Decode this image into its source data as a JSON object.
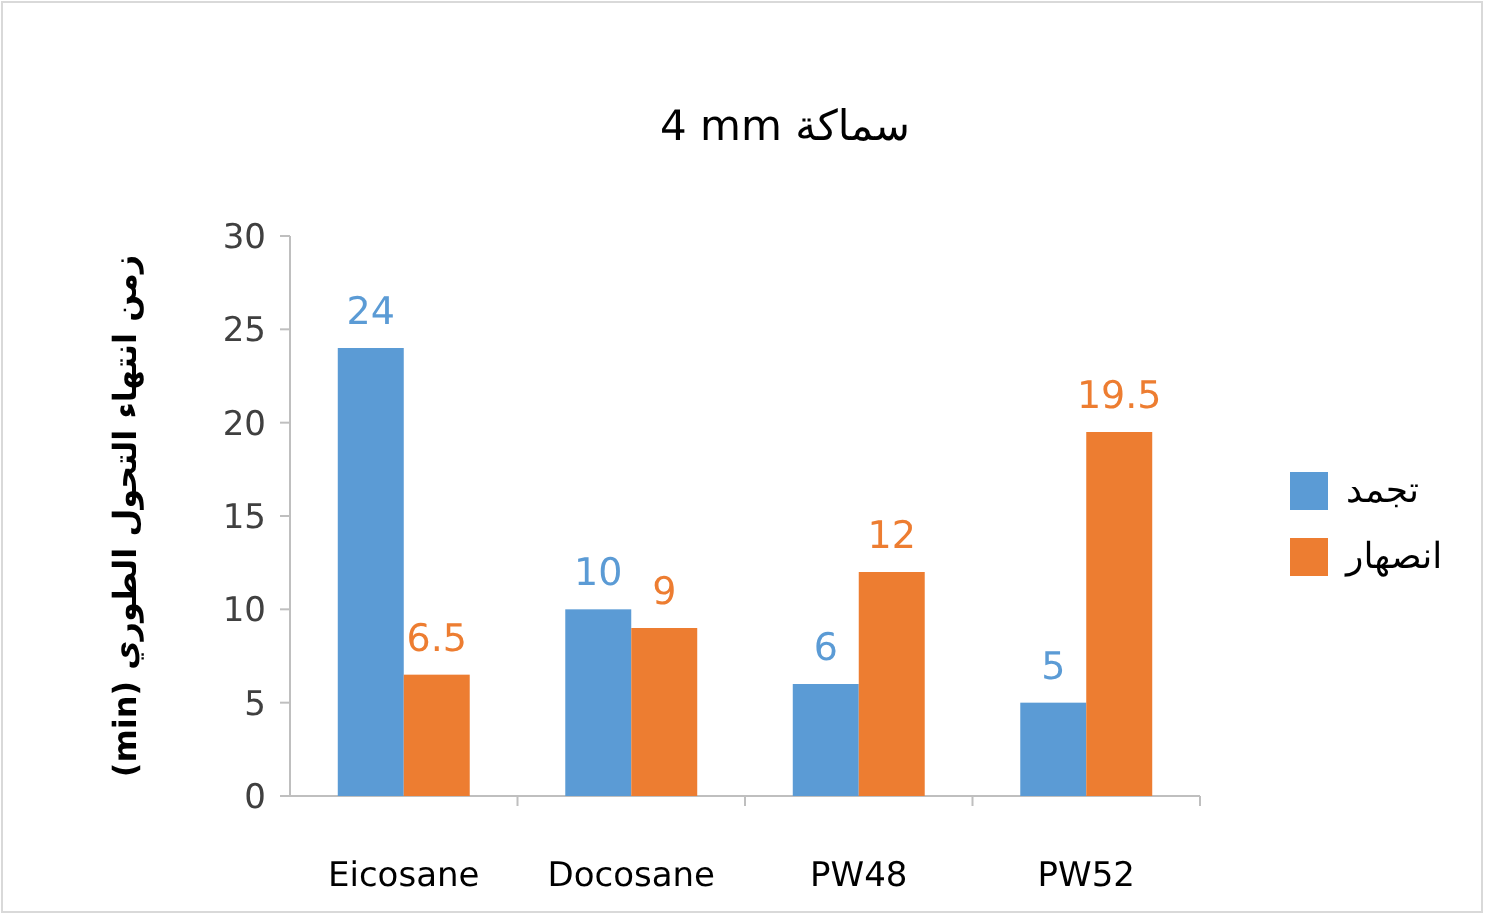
{
  "chart_data": {
    "type": "bar",
    "title": "4 mm سماكة",
    "ylabel": "زمن انتهاء التحول الطوري (min)",
    "categories": [
      "Eicosane",
      "Docosane",
      "PW48",
      "PW52"
    ],
    "series": [
      {
        "name": "تجمد",
        "color": "#5b9bd5",
        "values": [
          24,
          10,
          6,
          5
        ]
      },
      {
        "name": "انصهار",
        "color": "#ed7d31",
        "values": [
          6.5,
          9,
          12,
          19.5
        ]
      }
    ],
    "ylim": [
      0,
      30
    ],
    "yticks": [
      0,
      5,
      10,
      15,
      20,
      25,
      30
    ],
    "grid": false,
    "legend": "right",
    "data_labels": true
  }
}
